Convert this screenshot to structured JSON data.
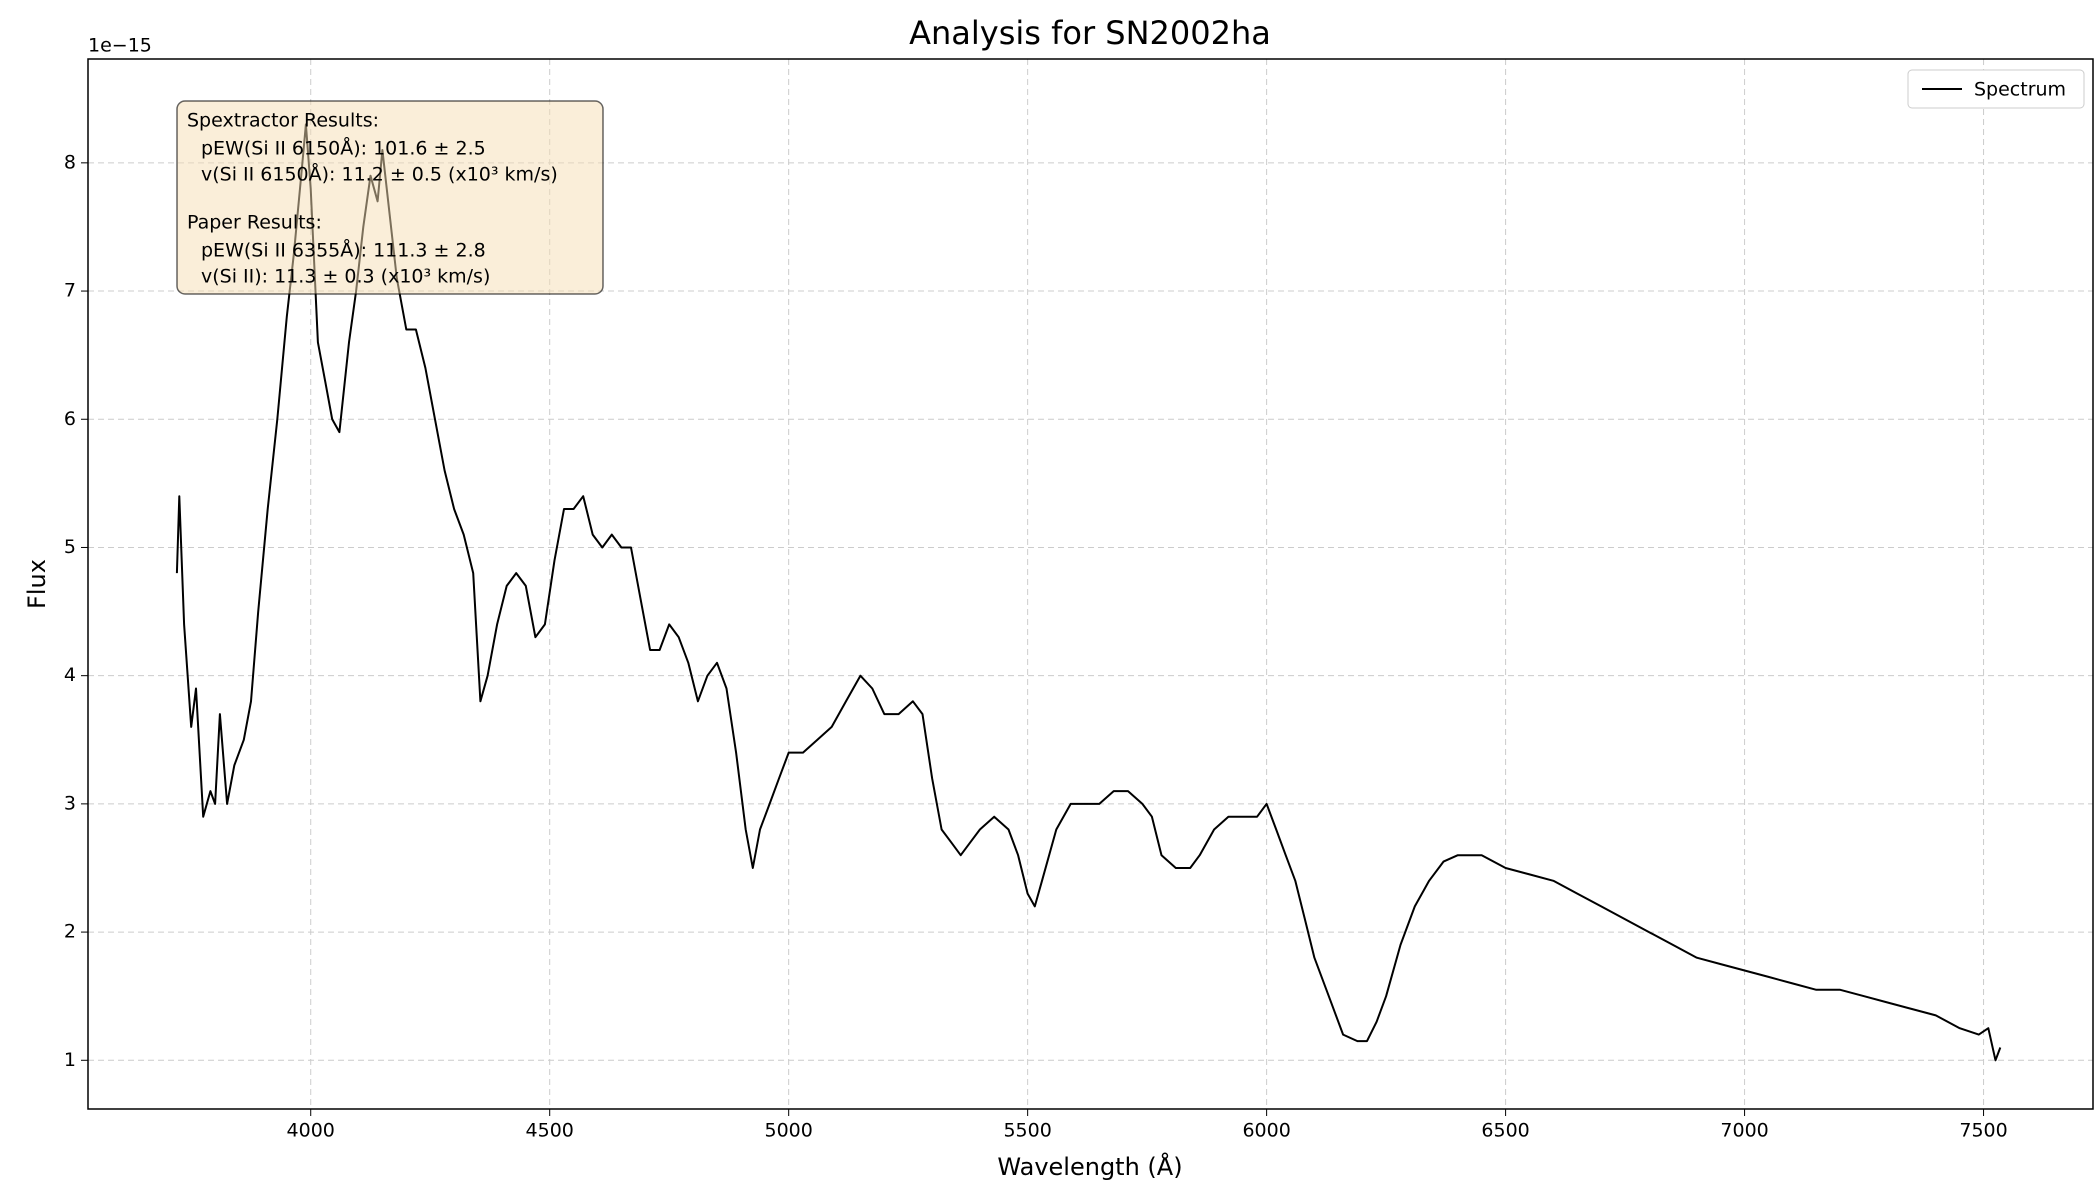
{
  "chart_data": {
    "type": "line",
    "title": "Analysis for SN2002ha",
    "x_label": "Wavelength (Å)",
    "y_label": "Flux",
    "y_offset_label": "1e−15",
    "xlim": [
      3534,
      7729
    ],
    "ylim": [
      0.62,
      8.81
    ],
    "xticks": [
      4000,
      4500,
      5000,
      5500,
      6000,
      6500,
      7000,
      7500
    ],
    "yticks": [
      1,
      2,
      3,
      4,
      5,
      6,
      7,
      8
    ],
    "grid": true,
    "legend": "upper right",
    "series": [
      {
        "name": "Spectrum",
        "color": "#000000",
        "x": [
          3720,
          3725,
          3735,
          3750,
          3760,
          3775,
          3790,
          3800,
          3810,
          3825,
          3840,
          3860,
          3875,
          3890,
          3910,
          3930,
          3950,
          3965,
          3980,
          3990,
          4000,
          4015,
          4030,
          4045,
          4060,
          4080,
          4095,
          4110,
          4125,
          4140,
          4150,
          4165,
          4180,
          4200,
          4220,
          4240,
          4260,
          4280,
          4300,
          4320,
          4340,
          4355,
          4370,
          4390,
          4410,
          4430,
          4450,
          4470,
          4490,
          4510,
          4530,
          4550,
          4570,
          4590,
          4610,
          4630,
          4650,
          4670,
          4690,
          4710,
          4730,
          4750,
          4770,
          4790,
          4810,
          4830,
          4850,
          4870,
          4890,
          4910,
          4925,
          4940,
          4960,
          4980,
          5000,
          5030,
          5060,
          5090,
          5120,
          5150,
          5175,
          5200,
          5230,
          5260,
          5280,
          5300,
          5320,
          5340,
          5360,
          5380,
          5400,
          5430,
          5460,
          5480,
          5500,
          5515,
          5530,
          5560,
          5590,
          5620,
          5650,
          5680,
          5710,
          5740,
          5760,
          5780,
          5810,
          5840,
          5860,
          5890,
          5920,
          5950,
          5980,
          6000,
          6020,
          6040,
          6060,
          6080,
          6100,
          6130,
          6160,
          6190,
          6210,
          6230,
          6250,
          6280,
          6310,
          6340,
          6370,
          6400,
          6450,
          6500,
          6550,
          6600,
          6650,
          6700,
          6750,
          6800,
          6850,
          6900,
          6950,
          7000,
          7050,
          7100,
          7150,
          7200,
          7250,
          7300,
          7350,
          7400,
          7450,
          7490,
          7510,
          7525,
          7535
        ],
        "values": [
          4.8,
          5.4,
          4.4,
          3.6,
          3.9,
          2.9,
          3.1,
          3.0,
          3.7,
          3.0,
          3.3,
          3.5,
          3.8,
          4.5,
          5.3,
          6.0,
          6.8,
          7.3,
          7.9,
          8.3,
          7.8,
          6.6,
          6.3,
          6.0,
          5.9,
          6.6,
          7.0,
          7.5,
          7.9,
          7.7,
          8.1,
          7.6,
          7.1,
          6.7,
          6.7,
          6.4,
          6.0,
          5.6,
          5.3,
          5.1,
          4.8,
          3.8,
          4.0,
          4.4,
          4.7,
          4.8,
          4.7,
          4.3,
          4.4,
          4.9,
          5.3,
          5.3,
          5.4,
          5.1,
          5.0,
          5.1,
          5.0,
          5.0,
          4.6,
          4.2,
          4.2,
          4.4,
          4.3,
          4.1,
          3.8,
          4.0,
          4.1,
          3.9,
          3.4,
          2.8,
          2.5,
          2.8,
          3.0,
          3.2,
          3.4,
          3.4,
          3.5,
          3.6,
          3.8,
          4.0,
          3.9,
          3.7,
          3.7,
          3.8,
          3.7,
          3.2,
          2.8,
          2.7,
          2.6,
          2.7,
          2.8,
          2.9,
          2.8,
          2.6,
          2.3,
          2.2,
          2.4,
          2.8,
          3.0,
          3.0,
          3.0,
          3.1,
          3.1,
          3.0,
          2.9,
          2.6,
          2.5,
          2.5,
          2.6,
          2.8,
          2.9,
          2.9,
          2.9,
          3.0,
          2.8,
          2.6,
          2.4,
          2.1,
          1.8,
          1.5,
          1.2,
          1.15,
          1.15,
          1.3,
          1.5,
          1.9,
          2.2,
          2.4,
          2.55,
          2.6,
          2.6,
          2.5,
          2.45,
          2.4,
          2.3,
          2.2,
          2.1,
          2.0,
          1.9,
          1.8,
          1.75,
          1.7,
          1.65,
          1.6,
          1.55,
          1.55,
          1.5,
          1.45,
          1.4,
          1.35,
          1.25,
          1.2,
          1.25,
          1.0,
          1.1
        ]
      }
    ],
    "annotation": {
      "sections": [
        {
          "heading": "Spextractor Results:",
          "lines": [
            "pEW(Si II 6150Å): 101.6 ± 2.5",
            "v(Si II 6150Å): 11.2 ± 0.5 (x10³ km/s)"
          ]
        },
        {
          "heading": "Paper Results:",
          "lines": [
            "pEW(Si II 6355Å): 111.3 ± 2.8",
            "v(Si II): 11.3 ± 0.3 (x10³ km/s)"
          ]
        }
      ]
    }
  }
}
